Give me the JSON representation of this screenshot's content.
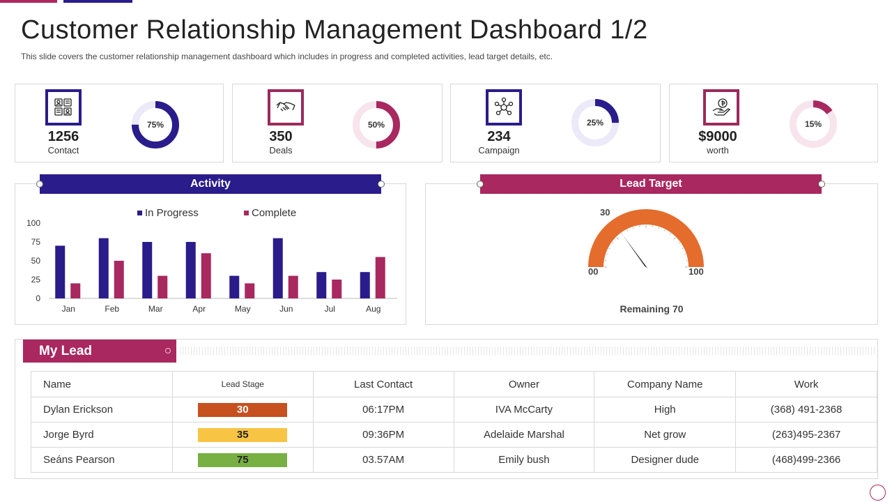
{
  "header": {
    "title": "Customer Relationship Management Dashboard 1/2",
    "subtitle": "This slide covers the customer relationship management dashboard which includes in progress and completed activities, lead target details, etc."
  },
  "kpis": [
    {
      "value": "1256",
      "label": "Contact",
      "percent": 75,
      "percent_label": "75%",
      "color": "#2a1c8a",
      "track": "#ece9f8",
      "icon": "contact-book-icon"
    },
    {
      "value": "350",
      "label": "Deals",
      "percent": 50,
      "percent_label": "50%",
      "color": "#a8285f",
      "track": "#f8e4ec",
      "icon": "handshake-icon"
    },
    {
      "value": "234",
      "label": "Campaign",
      "percent": 25,
      "percent_label": "25%",
      "color": "#2a1c8a",
      "track": "#ece9f8",
      "icon": "campaign-network-icon"
    },
    {
      "value": "$9000",
      "label": "worth",
      "percent": 15,
      "percent_label": "15%",
      "color": "#a8285f",
      "track": "#f8e4ec",
      "icon": "money-hand-icon"
    }
  ],
  "activity": {
    "title": "Activity",
    "ribbon_color": "#2a1c8a"
  },
  "lead_target": {
    "title": "Lead Target",
    "ribbon_color": "#a8285f",
    "gauge": {
      "min_label": "00",
      "max_label": "100",
      "value_label": "30",
      "value": 30,
      "color": "#e46c2d"
    },
    "remaining_label": "Remaining 70"
  },
  "my_lead": {
    "title": "My Lead",
    "columns": [
      "Name",
      "Lead Stage",
      "Last Contact",
      "Owner",
      "Company Name",
      "Work"
    ],
    "rows": [
      {
        "name": "Dylan Erickson",
        "stage": "30",
        "stage_color": "#c6501e",
        "stage_text_color": "#ffffff",
        "last_contact": "06:17PM",
        "owner": "IVA McCarty",
        "company": "High",
        "work": "(368) 491-2368"
      },
      {
        "name": "Jorge Byrd",
        "stage": "35",
        "stage_color": "#f7c444",
        "stage_text_color": "#222222",
        "last_contact": "09:36PM",
        "owner": "Adelaide Marshal",
        "company": "Net grow",
        "work": "(263)495-2367"
      },
      {
        "name": "Seáns Pearson",
        "stage": "75",
        "stage_color": "#78b043",
        "stage_text_color": "#222222",
        "last_contact": "03.57AM",
        "owner": "Emily bush",
        "company": "Designer dude",
        "work": "(468)499-2366"
      }
    ]
  },
  "chart_data": {
    "type": "bar",
    "title": "Activity",
    "categories": [
      "Jan",
      "Feb",
      "Mar",
      "Apr",
      "May",
      "Jun",
      "Jul",
      "Aug"
    ],
    "series": [
      {
        "name": "In Progress",
        "color": "#2a1c8a",
        "values": [
          70,
          80,
          75,
          75,
          30,
          80,
          35,
          35
        ]
      },
      {
        "name": "Complete",
        "color": "#a8285f",
        "values": [
          20,
          50,
          30,
          60,
          20,
          30,
          25,
          55
        ]
      }
    ],
    "yticks": [
      "0",
      "25",
      "50",
      "75",
      "100"
    ],
    "ylim": [
      0,
      100
    ],
    "xlabel": "",
    "ylabel": "",
    "legend": "top"
  }
}
